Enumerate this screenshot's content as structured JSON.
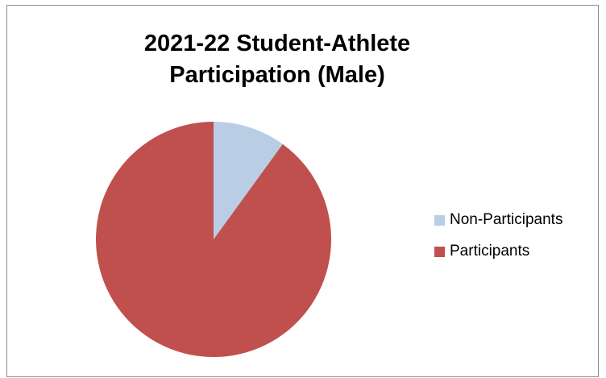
{
  "chart_data": {
    "type": "pie",
    "title_lines": [
      "2021-22 Student-Athlete",
      "Participation (Male)"
    ],
    "series": [
      {
        "categories": [
          "Non-Participants",
          "Participants"
        ],
        "values": [
          10,
          90
        ],
        "colors": [
          "#b9cde5",
          "#c0504d"
        ]
      }
    ],
    "legend_position": "right",
    "start_angle_deg": 0,
    "direction": "clockwise"
  }
}
